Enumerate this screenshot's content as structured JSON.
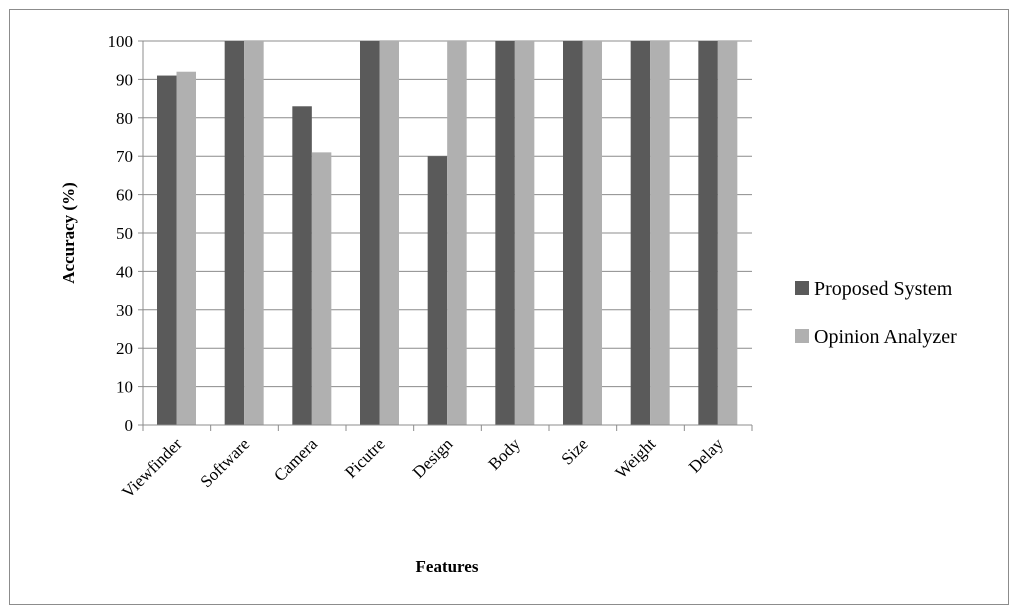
{
  "chart_data": {
    "type": "bar",
    "categories": [
      "Viewfinder",
      "Software",
      "Camera",
      "Picutre",
      "Design",
      "Body",
      "Size",
      "Weight",
      "Delay"
    ],
    "series": [
      {
        "name": "Proposed System",
        "color": "#5a5a5a",
        "values": [
          91,
          100,
          83,
          100,
          70,
          100,
          100,
          100,
          100
        ]
      },
      {
        "name": "Opinion Analyzer",
        "color": "#b0b0b0",
        "values": [
          92,
          100,
          71,
          100,
          100,
          100,
          100,
          100,
          100
        ]
      }
    ],
    "xlabel": "Features",
    "ylabel": "Accuracy (%)",
    "ylim": [
      0,
      100
    ],
    "yticks": [
      0,
      10,
      20,
      30,
      40,
      50,
      60,
      70,
      80,
      90,
      100
    ],
    "grid": "horizontal",
    "legend_position": "right"
  }
}
